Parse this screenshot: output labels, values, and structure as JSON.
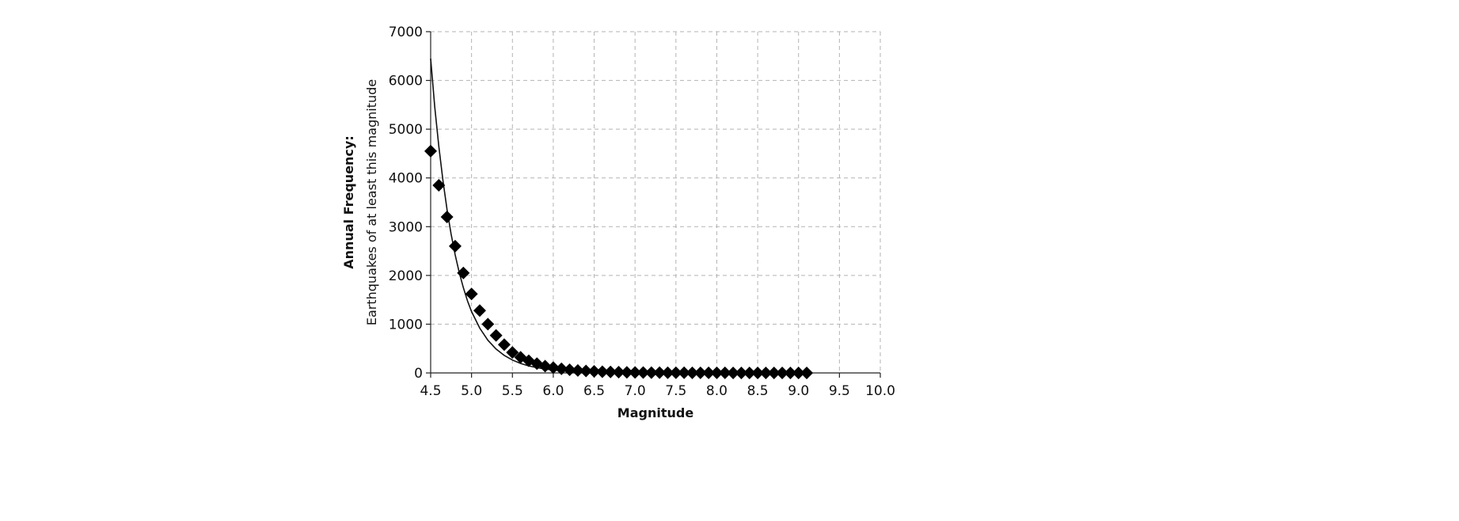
{
  "chart_data": {
    "type": "scatter",
    "xlabel": "Magnitude",
    "ylabel_line1": "Annual Frequency:",
    "ylabel_line2": "Earthquakes of at least this magnitude",
    "xlim": [
      4.5,
      10.0
    ],
    "ylim": [
      0,
      7000
    ],
    "x_ticks": [
      "4.5",
      "5.0",
      "5.5",
      "6.0",
      "6.5",
      "7.0",
      "7.5",
      "8.0",
      "8.5",
      "9.0",
      "9.5",
      "10.0"
    ],
    "y_ticks": [
      "0",
      "1000",
      "2000",
      "3000",
      "4000",
      "5000",
      "6000",
      "7000"
    ],
    "grid": true,
    "series": [
      {
        "kind": "points",
        "marker": "diamond",
        "x": [
          4.5,
          4.6,
          4.7,
          4.8,
          4.9,
          5.0,
          5.1,
          5.2,
          5.3,
          5.4,
          5.5,
          5.6,
          5.7,
          5.8,
          5.9,
          6.0,
          6.1,
          6.2,
          6.3,
          6.4,
          6.5,
          6.6,
          6.7,
          6.8,
          6.9,
          7.0,
          7.1,
          7.2,
          7.3,
          7.4,
          7.5,
          7.6,
          7.7,
          7.8,
          7.9,
          8.0,
          8.1,
          8.2,
          8.3,
          8.4,
          8.5,
          8.6,
          8.7,
          8.8,
          8.9,
          9.0,
          9.1
        ],
        "y": [
          4550,
          3850,
          3200,
          2600,
          2050,
          1620,
          1280,
          1000,
          770,
          580,
          420,
          320,
          250,
          190,
          140,
          110,
          85,
          65,
          50,
          40,
          32,
          25,
          20,
          16,
          13,
          10,
          8,
          7,
          6,
          5,
          4,
          4,
          3,
          3,
          2,
          2,
          2,
          1,
          1,
          1,
          1,
          1,
          1,
          1,
          0,
          0,
          0
        ]
      },
      {
        "kind": "line",
        "x": [
          4.5,
          4.55,
          4.6,
          4.65,
          4.7,
          4.75,
          4.8,
          4.85,
          4.9,
          4.95,
          5.0,
          5.1,
          5.2,
          5.3,
          5.4,
          5.5,
          5.6,
          5.7,
          5.8,
          5.9,
          6.0,
          6.2,
          6.4,
          6.6,
          6.8,
          7.0,
          7.5,
          8.0,
          8.5,
          9.0,
          9.1
        ],
        "y": [
          6450,
          5450,
          4650,
          3950,
          3350,
          2850,
          2420,
          2060,
          1750,
          1480,
          1260,
          920,
          670,
          490,
          360,
          265,
          195,
          145,
          108,
          80,
          60,
          34,
          20,
          12,
          7,
          4,
          1,
          0,
          0,
          0,
          0
        ]
      }
    ]
  }
}
